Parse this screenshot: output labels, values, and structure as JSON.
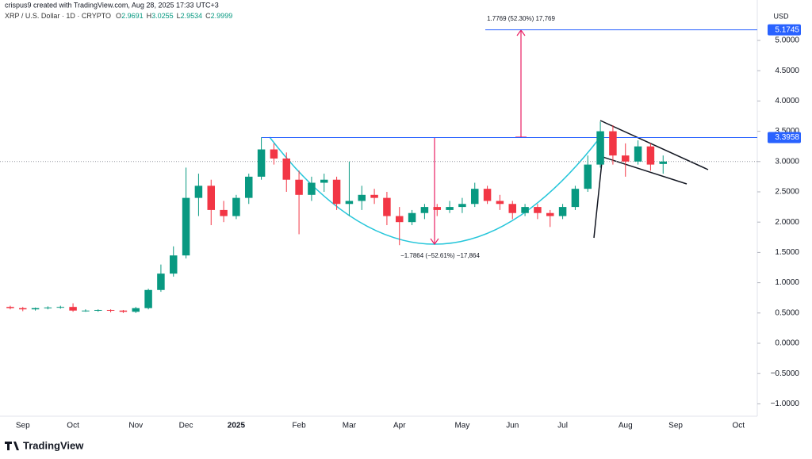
{
  "chart_data": {
    "type": "candlestick",
    "credit": "crispus9 created with TradingView.com, Aug 28, 2025 17:33 UTC+3",
    "symbol": "XRP / U.S. Dollar · 1D · CRYPTO",
    "quote": [
      {
        "key": "O",
        "value": 2.9691
      },
      {
        "key": "H",
        "value": 3.0255
      },
      {
        "key": "L",
        "value": 2.9534
      },
      {
        "key": "C",
        "value": 2.9999
      }
    ],
    "currency": "USD",
    "brand": "TradingView",
    "annotations": [
      "1.7769 (52.30%) 17,769",
      "−1.7864 (−52.61%) −17,864"
    ],
    "levels": [
      5.1745,
      3.3958
    ],
    "last_price": 2.9999,
    "up_color": "#089981",
    "down_color": "#f23645",
    "level_color": "#2962ff",
    "grid": false,
    "categories": [
      null,
      "Sep",
      null,
      null,
      null,
      "Oct",
      null,
      null,
      null,
      null,
      "Nov",
      null,
      null,
      null,
      "Dec",
      null,
      null,
      null,
      "2025",
      null,
      null,
      null,
      null,
      "Feb",
      null,
      null,
      null,
      "Mar",
      null,
      null,
      null,
      "Apr",
      null,
      null,
      null,
      null,
      "May",
      null,
      null,
      null,
      "Jun",
      null,
      null,
      null,
      "Jul",
      null,
      null,
      null,
      null,
      "Aug",
      null,
      null,
      null,
      "Sep",
      null,
      null,
      null,
      null,
      "Oct",
      null
    ],
    "open": [
      0.6,
      0.58,
      0.56,
      0.58,
      0.59,
      0.6,
      0.54,
      0.54,
      0.55,
      0.54,
      0.52,
      0.58,
      0.88,
      1.15,
      1.45,
      2.4,
      2.6,
      2.2,
      2.1,
      2.4,
      2.75,
      3.2,
      3.05,
      2.7,
      2.45,
      2.65,
      2.7,
      2.3,
      2.35,
      2.45,
      2.4,
      2.1,
      2.0,
      2.15,
      2.25,
      2.2,
      2.25,
      2.3,
      2.55,
      2.35,
      2.3,
      2.15,
      2.25,
      2.15,
      2.1,
      2.25,
      2.55,
      2.95,
      3.5,
      3.1,
      3.0,
      3.25,
      2.96,
      null,
      null,
      null,
      null,
      null,
      null,
      null
    ],
    "high": [
      0.62,
      0.6,
      0.59,
      0.61,
      0.62,
      0.66,
      0.56,
      0.56,
      0.56,
      0.55,
      0.6,
      0.9,
      1.3,
      1.6,
      2.9,
      2.8,
      2.7,
      2.35,
      2.45,
      2.8,
      3.4,
      3.3,
      3.15,
      2.85,
      2.75,
      2.8,
      2.75,
      3.0,
      2.6,
      2.55,
      2.5,
      2.25,
      2.2,
      2.3,
      2.3,
      2.35,
      2.4,
      2.65,
      2.6,
      2.45,
      2.35,
      2.3,
      2.3,
      2.2,
      2.3,
      2.6,
      3.1,
      3.66,
      3.6,
      3.3,
      3.35,
      3.3,
      3.1,
      null,
      null,
      null,
      null,
      null,
      null,
      null
    ],
    "low": [
      0.56,
      0.53,
      0.54,
      0.56,
      0.57,
      0.52,
      0.52,
      0.52,
      0.51,
      0.5,
      0.5,
      0.56,
      0.85,
      1.1,
      1.4,
      2.1,
      1.95,
      2.0,
      2.05,
      2.3,
      2.7,
      2.95,
      2.5,
      1.8,
      2.35,
      2.5,
      2.2,
      2.1,
      2.2,
      2.3,
      1.95,
      1.62,
      1.95,
      2.05,
      2.1,
      2.15,
      2.15,
      2.25,
      2.3,
      2.2,
      2.05,
      2.1,
      2.05,
      1.92,
      2.05,
      2.2,
      2.5,
      2.9,
      2.95,
      2.75,
      2.95,
      2.85,
      2.8,
      null,
      null,
      null,
      null,
      null,
      null,
      null
    ],
    "close": [
      0.58,
      0.56,
      0.58,
      0.59,
      0.6,
      0.54,
      0.54,
      0.55,
      0.54,
      0.52,
      0.58,
      0.88,
      1.15,
      1.45,
      2.4,
      2.6,
      2.2,
      2.1,
      2.4,
      2.75,
      3.2,
      3.05,
      2.7,
      2.45,
      2.65,
      2.7,
      2.3,
      2.35,
      2.45,
      2.4,
      2.1,
      2.0,
      2.15,
      2.25,
      2.2,
      2.25,
      2.3,
      2.55,
      2.35,
      2.3,
      2.15,
      2.25,
      2.15,
      2.1,
      2.25,
      2.55,
      2.95,
      3.5,
      3.1,
      3.0,
      3.25,
      2.95,
      2.9999,
      null,
      null,
      null,
      null,
      null,
      null,
      null
    ],
    "ylim": [
      -1.2,
      5.4
    ],
    "yticks": [
      {
        "value": -1.0,
        "label": "−1.0000"
      },
      {
        "value": -0.5,
        "label": "−0.5000"
      },
      {
        "value": 0,
        "label": "0.0000"
      },
      {
        "value": 0.5,
        "label": "0.5000"
      },
      {
        "value": 1.0,
        "label": "1.0000"
      },
      {
        "value": 1.5,
        "label": "1.5000"
      },
      {
        "value": 2.0,
        "label": "2.0000"
      },
      {
        "value": 2.5,
        "label": "2.5000"
      },
      {
        "value": 3.0,
        "label": "3.0000"
      },
      {
        "value": 3.5,
        "label": "3.5000"
      },
      {
        "value": 4.0,
        "label": "4.0000"
      },
      {
        "value": 4.5,
        "label": "4.5000"
      },
      {
        "value": 5.0,
        "label": "5.0000"
      }
    ]
  }
}
